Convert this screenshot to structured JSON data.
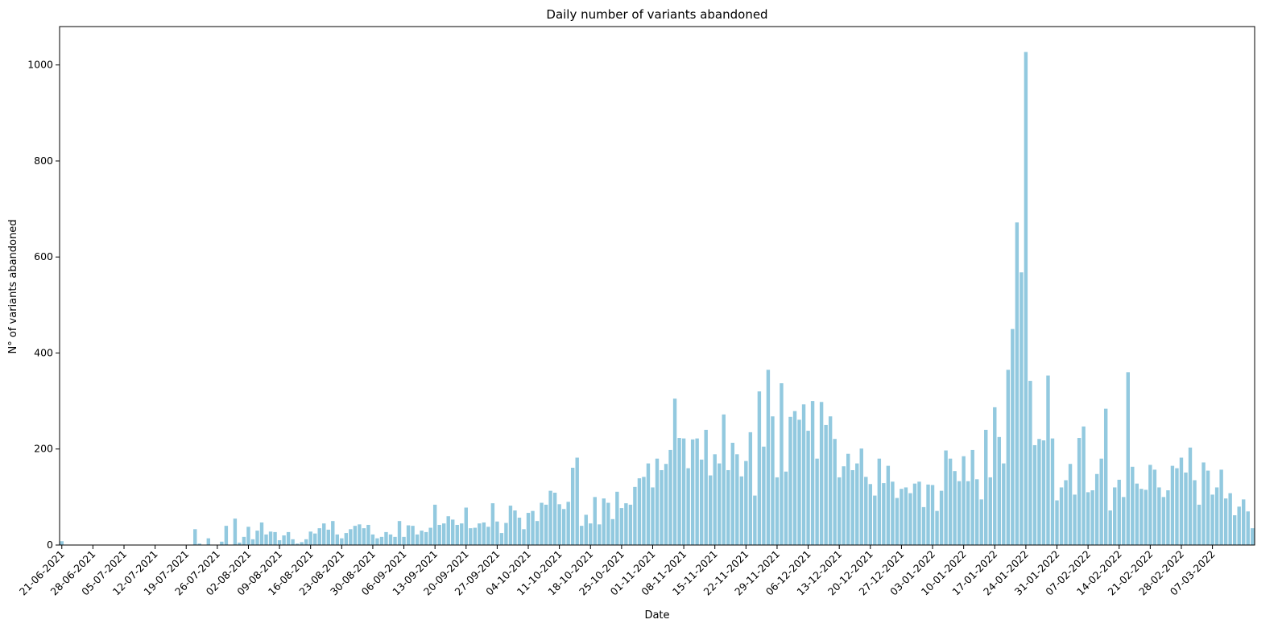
{
  "chart_data": {
    "type": "bar",
    "title": "Daily number of variants abandoned",
    "xlabel": "Date",
    "ylabel": "N° of variants abandoned",
    "ylim": [
      0,
      1080
    ],
    "yticks": [
      0,
      200,
      400,
      600,
      800,
      1000
    ],
    "bar_color": "#92c9df",
    "grid": false,
    "start_date": "21-06-2021",
    "x_tick_labels": [
      "21-06-2021",
      "28-06-2021",
      "05-07-2021",
      "12-07-2021",
      "19-07-2021",
      "26-07-2021",
      "02-08-2021",
      "09-08-2021",
      "16-08-2021",
      "23-08-2021",
      "30-08-2021",
      "06-09-2021",
      "13-09-2021",
      "20-09-2021",
      "27-09-2021",
      "04-10-2021",
      "11-10-2021",
      "18-10-2021",
      "25-10-2021",
      "01-11-2021",
      "08-11-2021",
      "15-11-2021",
      "22-11-2021",
      "29-11-2021",
      "06-12-2021",
      "13-12-2021",
      "20-12-2021",
      "27-12-2021",
      "03-01-2022",
      "10-01-2022",
      "17-01-2022",
      "24-01-2022",
      "31-01-2022",
      "07-02-2022",
      "14-02-2022",
      "21-02-2022",
      "28-02-2022",
      "07-03-2022"
    ],
    "values": [
      8,
      0,
      0,
      0,
      0,
      0,
      0,
      0,
      0,
      0,
      0,
      0,
      0,
      0,
      0,
      0,
      0,
      0,
      0,
      0,
      0,
      0,
      0,
      0,
      0,
      0,
      0,
      0,
      0,
      0,
      33,
      3,
      0,
      14,
      0,
      0,
      7,
      40,
      0,
      55,
      5,
      17,
      38,
      12,
      30,
      47,
      22,
      28,
      27,
      10,
      20,
      27,
      12,
      3,
      6,
      12,
      28,
      24,
      35,
      45,
      32,
      50,
      22,
      14,
      25,
      33,
      40,
      43,
      35,
      42,
      22,
      14,
      17,
      27,
      22,
      17,
      50,
      17,
      41,
      40,
      22,
      30,
      27,
      36,
      84,
      42,
      45,
      60,
      53,
      42,
      45,
      78,
      35,
      36,
      45,
      47,
      38,
      87,
      49,
      25,
      46,
      82,
      72,
      57,
      33,
      67,
      71,
      50,
      88,
      84,
      113,
      109,
      85,
      75,
      90,
      161,
      182,
      40,
      63,
      45,
      100,
      43,
      97,
      88,
      54,
      111,
      77,
      87,
      84,
      121,
      139,
      142,
      170,
      120,
      180,
      156,
      169,
      198,
      305,
      223,
      222,
      160,
      220,
      222,
      178,
      240,
      145,
      189,
      170,
      272,
      156,
      213,
      189,
      143,
      175,
      235,
      103,
      320,
      205,
      365,
      268,
      141,
      337,
      153,
      267,
      279,
      261,
      293,
      238,
      300,
      180,
      298,
      250,
      268,
      221,
      141,
      164,
      190,
      156,
      170,
      201,
      142,
      127,
      103,
      180,
      129,
      165,
      132,
      98,
      117,
      120,
      108,
      128,
      132,
      79,
      126,
      125,
      71,
      113,
      197,
      180,
      154,
      133,
      185,
      133,
      198,
      137,
      95,
      240,
      141,
      287,
      225,
      170,
      365,
      450,
      672,
      568,
      1027,
      342,
      208,
      221,
      218,
      353,
      222,
      93,
      120,
      135,
      169,
      105,
      223,
      247,
      110,
      114,
      148,
      180,
      284,
      72,
      120,
      136,
      100,
      360,
      163,
      128,
      117,
      115,
      167,
      157,
      120,
      100,
      114,
      165,
      160,
      182,
      151,
      203,
      135,
      84,
      172,
      155,
      105,
      120,
      157,
      97,
      108,
      62,
      80,
      95,
      70,
      35
    ]
  }
}
